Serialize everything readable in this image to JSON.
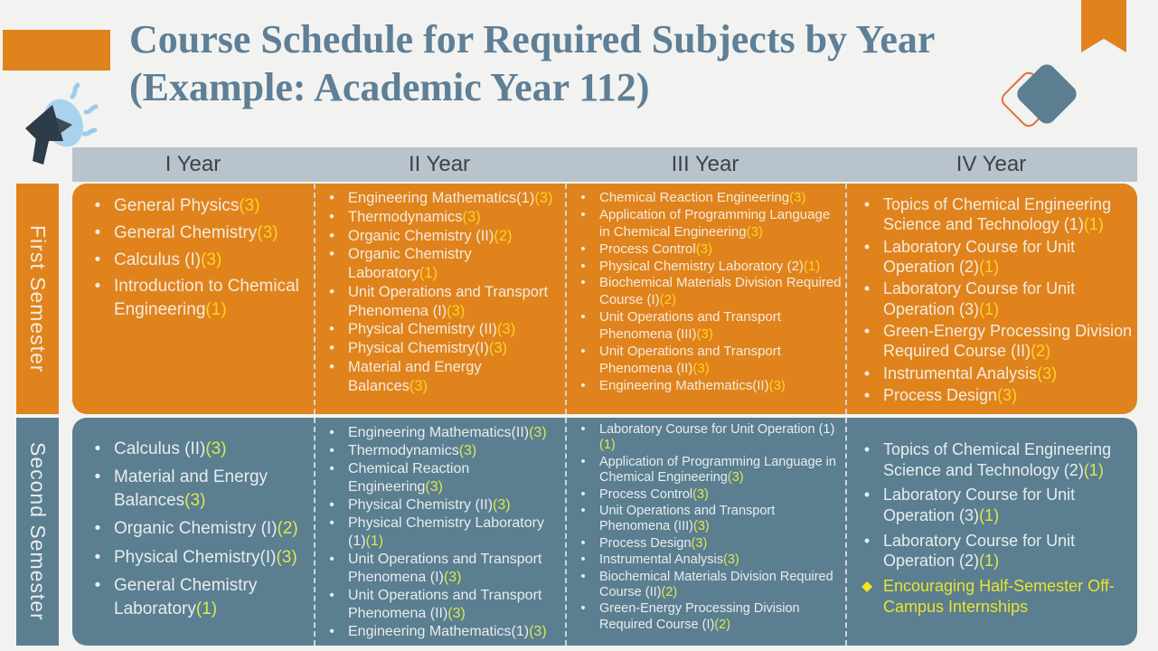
{
  "title": {
    "line1": "Course Schedule for Required Subjects by Year",
    "line2": "(Example: Academic Year 112)"
  },
  "header": {
    "columns": [
      "I Year",
      "II Year",
      "III Year",
      "IV Year"
    ]
  },
  "bullet_glyph": "•",
  "highlight_bullet_glyph": "◆",
  "semesters": [
    {
      "label": "First Semester",
      "columns": [
        {
          "year": "I Year",
          "items": [
            {
              "name": "General Physics",
              "credit": "(3)"
            },
            {
              "name": "General Chemistry",
              "credit": "(3)"
            },
            {
              "name": "Calculus (I)",
              "credit": "(3)"
            },
            {
              "name": "Introduction to Chemical Engineering",
              "credit": "(1)"
            }
          ]
        },
        {
          "year": "II Year",
          "items": [
            {
              "name": "Engineering Mathematics(1)",
              "credit": "(3)"
            },
            {
              "name": "Thermodynamics",
              "credit": "(3)"
            },
            {
              "name": "Organic Chemistry (II)",
              "credit": "(2)"
            },
            {
              "name": "Organic Chemistry Laboratory",
              "credit": "(1)"
            },
            {
              "name": "Unit Operations and Transport Phenomena (I)",
              "credit": "(3)"
            },
            {
              "name": "Physical Chemistry (II)",
              "credit": "(3)"
            },
            {
              "name": "Physical Chemistry(I)",
              "credit": "(3)"
            },
            {
              "name": "Material and Energy Balances",
              "credit": "(3)"
            }
          ]
        },
        {
          "year": "III Year",
          "items": [
            {
              "name": "Chemical Reaction Engineering",
              "credit": "(3)"
            },
            {
              "name": "Application of Programming Language in Chemical Engineering",
              "credit": "(3)"
            },
            {
              "name": "Process Control",
              "credit": "(3)"
            },
            {
              "name": "Physical Chemistry Laboratory (2)",
              "credit": "(1)"
            },
            {
              "name": "Biochemical Materials Division Required Course (I)",
              "credit": "(2)"
            },
            {
              "name": "Unit Operations and Transport Phenomena (III)",
              "credit": "(3)"
            },
            {
              "name": "Unit Operations and Transport Phenomena (II)",
              "credit": "(3)"
            },
            {
              "name": "Engineering Mathematics(II)",
              "credit": "(3)"
            }
          ]
        },
        {
          "year": "IV Year",
          "items": [
            {
              "name": "Topics of Chemical Engineering Science and Technology (1)",
              "credit": "(1)"
            },
            {
              "name": "Laboratory Course for Unit Operation (2)",
              "credit": "(1)"
            },
            {
              "name": "Laboratory Course for Unit Operation (3)",
              "credit": "(1)"
            },
            {
              "name": "Green-Energy Processing Division Required Course (II)",
              "credit": "(2)"
            },
            {
              "name": "Instrumental Analysis",
              "credit": "(3)"
            },
            {
              "name": "Process Design",
              "credit": "(3)"
            }
          ]
        }
      ]
    },
    {
      "label": "Second Semester",
      "columns": [
        {
          "year": "I Year",
          "items": [
            {
              "name": "Calculus (II)",
              "credit": "(3)"
            },
            {
              "name": "Material and Energy Balances",
              "credit": "(3)"
            },
            {
              "name": "Organic Chemistry (I)",
              "credit": "(2)"
            },
            {
              "name": "Physical Chemistry(I)",
              "credit": "(3)"
            },
            {
              "name": "General Chemistry Laboratory",
              "credit": "(1)"
            }
          ]
        },
        {
          "year": "II Year",
          "items": [
            {
              "name": "Engineering Mathematics(II)",
              "credit": "(3)"
            },
            {
              "name": "Thermodynamics",
              "credit": "(3)"
            },
            {
              "name": "Chemical Reaction Engineering",
              "credit": "(3)"
            },
            {
              "name": "Physical Chemistry (II)",
              "credit": "(3)"
            },
            {
              "name": "Physical Chemistry Laboratory (1)",
              "credit": "(1)"
            },
            {
              "name": "Unit Operations and Transport Phenomena (I)",
              "credit": "(3)"
            },
            {
              "name": "Unit Operations and Transport Phenomena (II)",
              "credit": "(3)"
            },
            {
              "name": "Engineering Mathematics(1)",
              "credit": "(3)"
            }
          ]
        },
        {
          "year": "III Year",
          "items": [
            {
              "name": "Laboratory Course for Unit Operation (1)",
              "credit": "(1)"
            },
            {
              "name": "Application of Programming Language in Chemical Engineering",
              "credit": "(3)"
            },
            {
              "name": "Process Control",
              "credit": "(3)"
            },
            {
              "name": "Unit Operations and Transport Phenomena (III)",
              "credit": "(3)"
            },
            {
              "name": "Process Design",
              "credit": "(3)"
            },
            {
              "name": "Instrumental Analysis",
              "credit": "(3)"
            },
            {
              "name": "Biochemical Materials Division Required Course (II)",
              "credit": "(2)"
            },
            {
              "name": "Green-Energy Processing Division Required Course (I)",
              "credit": "(2)"
            }
          ]
        },
        {
          "year": "IV Year",
          "items": [
            {
              "name": "Topics of Chemical Engineering Science and Technology (2)",
              "credit": "(1)"
            },
            {
              "name": "Laboratory Course for Unit Operation (3)",
              "credit": "(1)"
            },
            {
              "name": "Laboratory Course for Unit Operation (2)",
              "credit": "(1)"
            },
            {
              "name": "Encouraging Half-Semester Off-Campus Internships",
              "credit": "",
              "highlight": true
            }
          ]
        }
      ]
    }
  ],
  "colors": {
    "accent_orange": "#E0831C",
    "accent_slate": "#5B7E91",
    "header_band": "#B8C3CB",
    "title_text": "#5E7F96",
    "credit_gold": "#FFD21E",
    "credit_lime": "#DDE94E",
    "highlight_yellow": "#E8E430",
    "background": "#F2F3F1"
  }
}
